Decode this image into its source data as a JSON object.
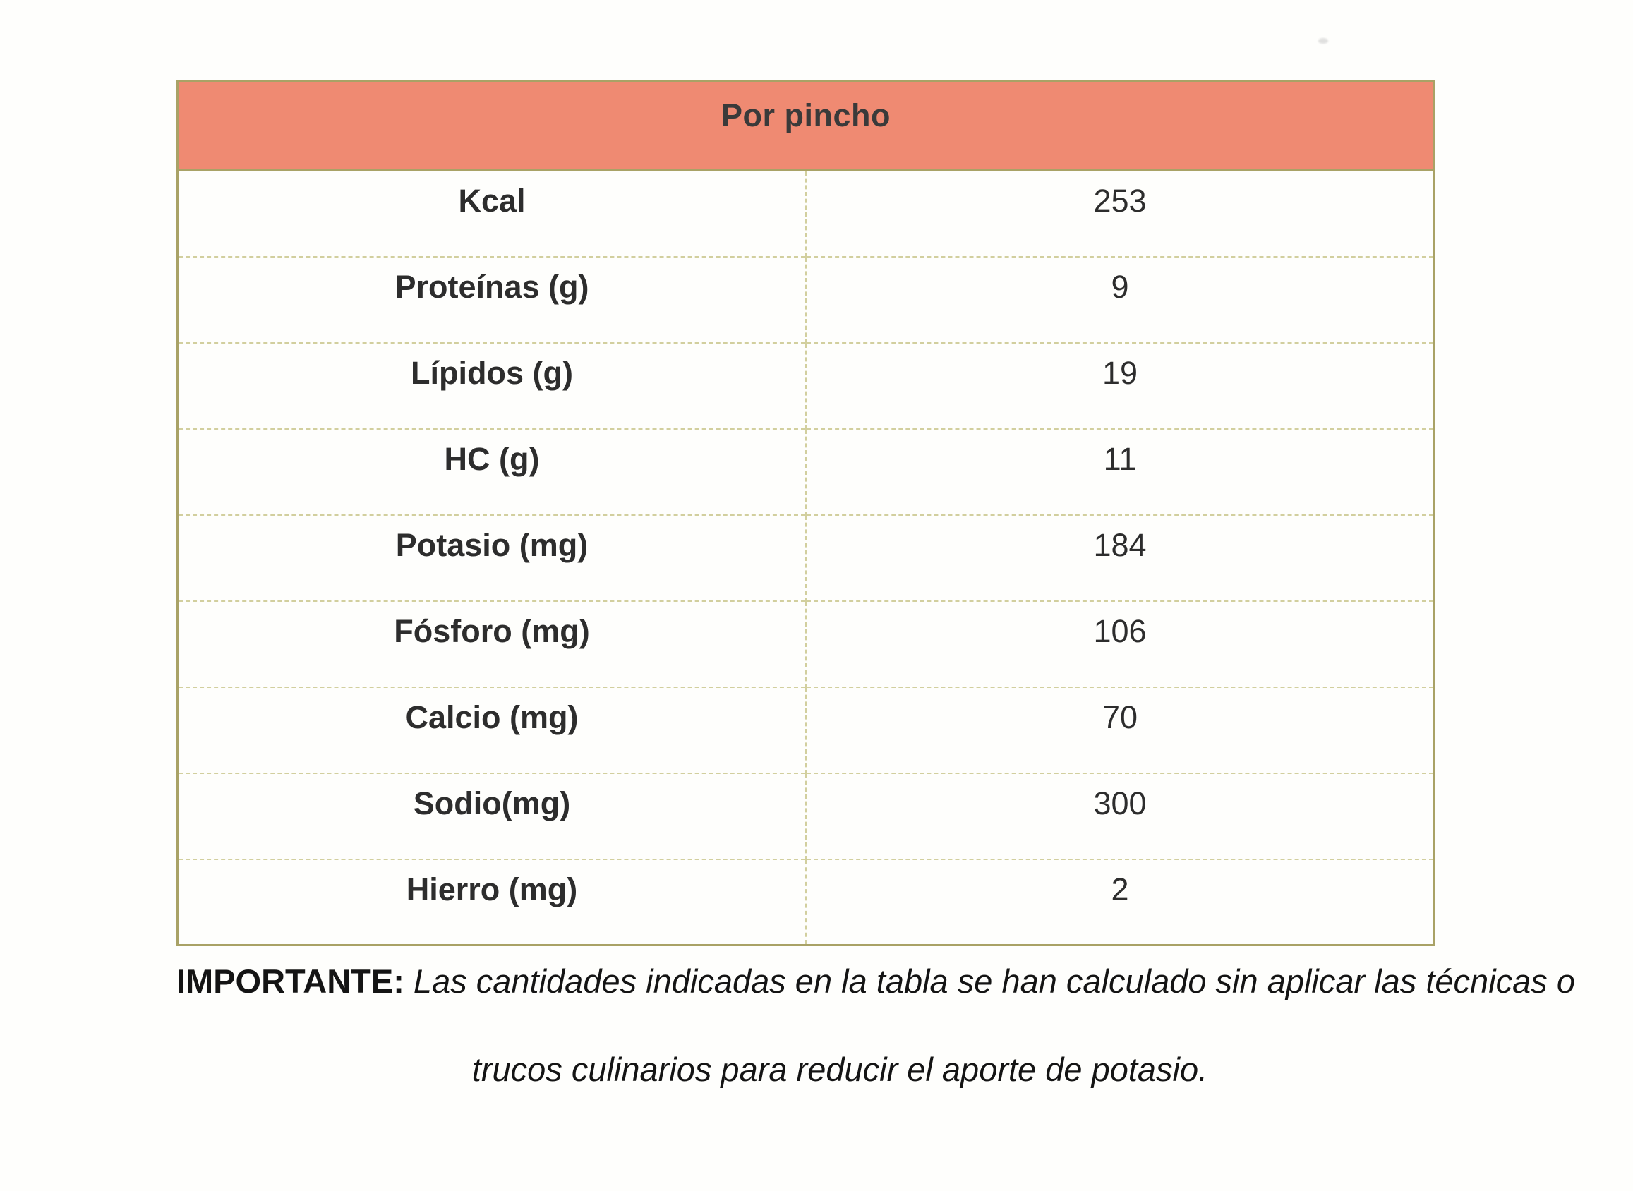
{
  "table": {
    "header": "Por pincho",
    "rows": [
      {
        "label": "Kcal",
        "value": "253"
      },
      {
        "label": "Proteínas (g)",
        "value": "9"
      },
      {
        "label": "Lípidos (g)",
        "value": "19"
      },
      {
        "label": "HC (g)",
        "value": "11"
      },
      {
        "label": "Potasio (mg)",
        "value": "184"
      },
      {
        "label": "Fósforo (mg)",
        "value": "106"
      },
      {
        "label": "Calcio (mg)",
        "value": "70"
      },
      {
        "label": "Sodio(mg)",
        "value": "300"
      },
      {
        "label": "Hierro (mg)",
        "value": "2"
      }
    ]
  },
  "note": {
    "prefix": "IMPORTANTE:",
    "line1": " Las cantidades indicadas en la tabla se han calculado sin aplicar las técnicas o",
    "line2": "trucos culinarios para reducir el aporte de potasio."
  },
  "colors": {
    "header_bg": "#ef8a72",
    "border_strong": "#a9a266",
    "border_light": "#d2cf9e"
  }
}
